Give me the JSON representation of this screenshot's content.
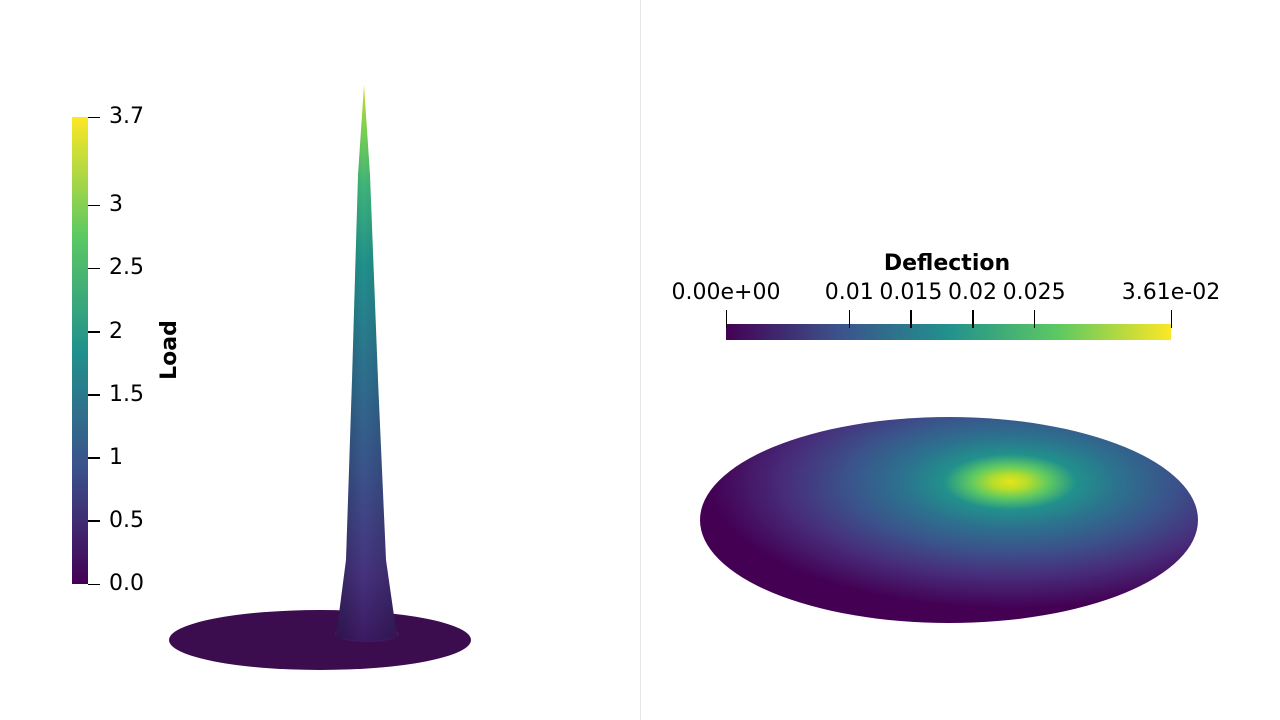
{
  "load_colorbar": {
    "title": "Load",
    "range": [
      0.0,
      3.7
    ],
    "ticks": [
      {
        "value": 3.7,
        "label": "3.7"
      },
      {
        "value": 3.0,
        "label": "3"
      },
      {
        "value": 2.5,
        "label": "2.5"
      },
      {
        "value": 2.0,
        "label": "2"
      },
      {
        "value": 1.5,
        "label": "1.5"
      },
      {
        "value": 1.0,
        "label": "1"
      },
      {
        "value": 0.5,
        "label": "0.5"
      },
      {
        "value": 0.0,
        "label": "0.0"
      }
    ]
  },
  "deflection_colorbar": {
    "title": "Deflection",
    "range": [
      0.0,
      0.0361
    ],
    "ticks": [
      {
        "value": 0.0,
        "label": "0.00e+00"
      },
      {
        "value": 0.01,
        "label": "0.01"
      },
      {
        "value": 0.015,
        "label": "0.015"
      },
      {
        "value": 0.02,
        "label": "0.02"
      },
      {
        "value": 0.025,
        "label": "0.025"
      },
      {
        "value": 0.0361,
        "label": "3.61e-02"
      }
    ]
  },
  "colormap": "viridis",
  "colors": {
    "viridis": [
      "#440154",
      "#3b528b",
      "#21918c",
      "#5ec962",
      "#fde725"
    ],
    "background": "#ffffff",
    "divider": "#e6e6e6"
  }
}
